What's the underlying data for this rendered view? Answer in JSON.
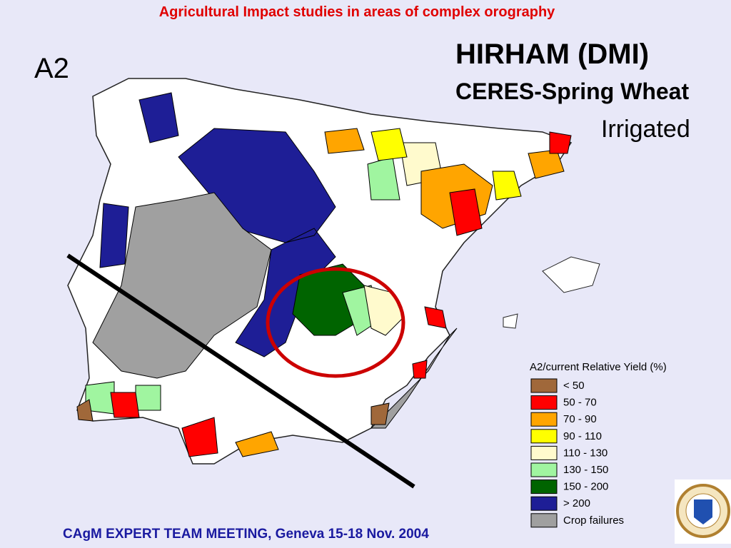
{
  "header": "Agricultural Impact studies in areas of complex orography",
  "scenario": "A2",
  "title": "HIRHAM (DMI)",
  "subtitle": "CERES-Spring Wheat",
  "condition": "Irrigated",
  "legend": {
    "title": "A2/current Relative Yield (%)",
    "items": [
      {
        "label": "< 50",
        "color": "#a0683a"
      },
      {
        "label": "50 - 70",
        "color": "#ff0000"
      },
      {
        "label": "70 - 90",
        "color": "#ffa500"
      },
      {
        "label": "90 - 110",
        "color": "#ffff00"
      },
      {
        "label": "110 - 130",
        "color": "#fffacd"
      },
      {
        "label": "130 - 150",
        "color": "#a0f5a0"
      },
      {
        "label": "150 - 200",
        "color": "#006400"
      },
      {
        "label": "> 200",
        "color": "#1e1e96"
      },
      {
        "label": "Crop failures",
        "color": "#a0a0a0"
      }
    ]
  },
  "footer": "CAgM EXPERT TEAM MEETING, Geneva 15-18 Nov. 2004"
}
